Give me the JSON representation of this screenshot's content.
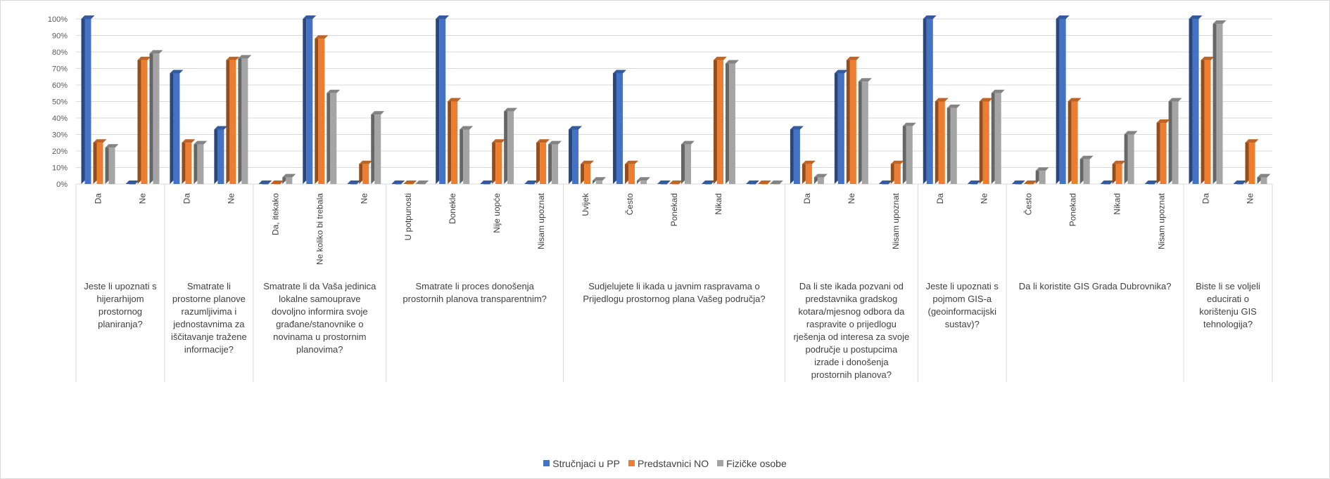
{
  "chart_data": {
    "type": "bar",
    "style": "3d-clustered-column",
    "ylim": [
      0,
      100
    ],
    "yticks": [
      "0%",
      "10%",
      "20%",
      "30%",
      "40%",
      "50%",
      "60%",
      "70%",
      "80%",
      "90%",
      "100%"
    ],
    "grid": true,
    "legend_position": "bottom",
    "groups": [
      {
        "label": "Jeste li upoznati s hijerarhijom prostornog planiranja?",
        "lines": [
          "Jeste li upoznati s",
          "hijerarhijom",
          "prostornog",
          "planiranja?"
        ],
        "categories": [
          "Da",
          "Ne"
        ]
      },
      {
        "label": "Smatrate li prostorne planove razumljivima i jednostavnima za iščitavanje tražene informacije?",
        "lines": [
          "Smatrate li",
          "prostorne planove",
          "razumljivima i",
          "jednostavnima za",
          "iščitavanje tražene",
          "informacije?"
        ],
        "categories": [
          "Da",
          "Ne"
        ]
      },
      {
        "label": "Smatrate li da Vaša jedinica lokalne samouprave dovoljno informira svoje građane/stanovnike o novinama u prostornim planovima?",
        "lines": [
          "Smatrate li da Vaša jedinica",
          "lokalne samouprave",
          "dovoljno informira svoje",
          "građane/stanovnike o",
          "novinama u prostornim",
          "planovima?"
        ],
        "categories": [
          "Da, itekako",
          "Ne koliko bi trebala",
          "Ne"
        ]
      },
      {
        "label": "Smatrate li proces donošenja prostornih planova transparentnim?",
        "lines": [
          "Smatrate li proces donošenja",
          "prostornih planova transparentnim?"
        ],
        "categories": [
          "U potpunosti",
          "Donekle",
          "Nije uopće",
          "Nisam upoznat"
        ]
      },
      {
        "label": "Sudjelujete li ikada u javnim raspravama o Prijedlogu prostornog plana Vašeg područja?",
        "lines": [
          "Sudjelujete li ikada u javnim raspravama o",
          "Prijedlogu prostornog plana Vašeg područja?"
        ],
        "categories": [
          "Uvijek",
          "Često",
          "Ponekad",
          "Nikad",
          ""
        ]
      },
      {
        "label": "Da li ste ikada pozvani od predstavnika gradskog kotara/mjesnog odbora da raspravite o prijedlogu rješenja od interesa za svoje područje u postupcima izrade i donošenja prostornih planova?",
        "lines": [
          "Da li ste ikada pozvani od",
          "predstavnika gradskog",
          "kotara/mjesnog odbora da",
          "raspravite o prijedlogu",
          "rješenja od interesa za svoje",
          "područje u postupcima",
          "izrade i donošenja",
          "prostornih planova?"
        ],
        "categories": [
          "Da",
          "Ne",
          "Nisam upoznat"
        ]
      },
      {
        "label": "Jeste li upoznati s pojmom GIS-a (geoinformacijski sustav)?",
        "lines": [
          "Jeste li upoznati s",
          "pojmom GIS-a",
          "(geoinformacijski",
          "sustav)?"
        ],
        "categories": [
          "Da",
          "Ne"
        ]
      },
      {
        "label": "Da li koristite GIS Grada Dubrovnika?",
        "lines": [
          "Da li koristite GIS Grada Dubrovnika?"
        ],
        "categories": [
          "Često",
          "Ponekad",
          "Nikad",
          "Nisam upoznat"
        ]
      },
      {
        "label": "Biste li se voljeli educirati o korištenju GIS tehnologija?",
        "lines": [
          "Biste li se voljeli",
          "educirati o",
          "korištenju GIS",
          "tehnologija?"
        ],
        "categories": [
          "Da",
          "Ne"
        ]
      }
    ],
    "series": [
      {
        "name": "Stručnjaci u PP",
        "color": "#4472C4",
        "values": [
          100,
          0,
          67,
          33,
          0,
          100,
          0,
          0,
          100,
          0,
          0,
          33,
          67,
          0,
          0,
          0,
          33,
          67,
          0,
          100,
          0,
          0,
          100,
          0,
          0,
          100,
          0
        ]
      },
      {
        "name": "Predstavnici NO",
        "color": "#ED7D31",
        "values": [
          25,
          75,
          25,
          75,
          0,
          88,
          12,
          0,
          50,
          25,
          25,
          12,
          12,
          0,
          75,
          0,
          12,
          75,
          12,
          50,
          50,
          0,
          50,
          12,
          37,
          75,
          25
        ]
      },
      {
        "name": "Fizičke osobe",
        "color": "#A5A5A5",
        "values": [
          22,
          79,
          24,
          76,
          4,
          55,
          42,
          0,
          33,
          44,
          24,
          2,
          2,
          24,
          73,
          0,
          4,
          62,
          35,
          46,
          55,
          8,
          15,
          30,
          50,
          97,
          4
        ]
      }
    ]
  }
}
